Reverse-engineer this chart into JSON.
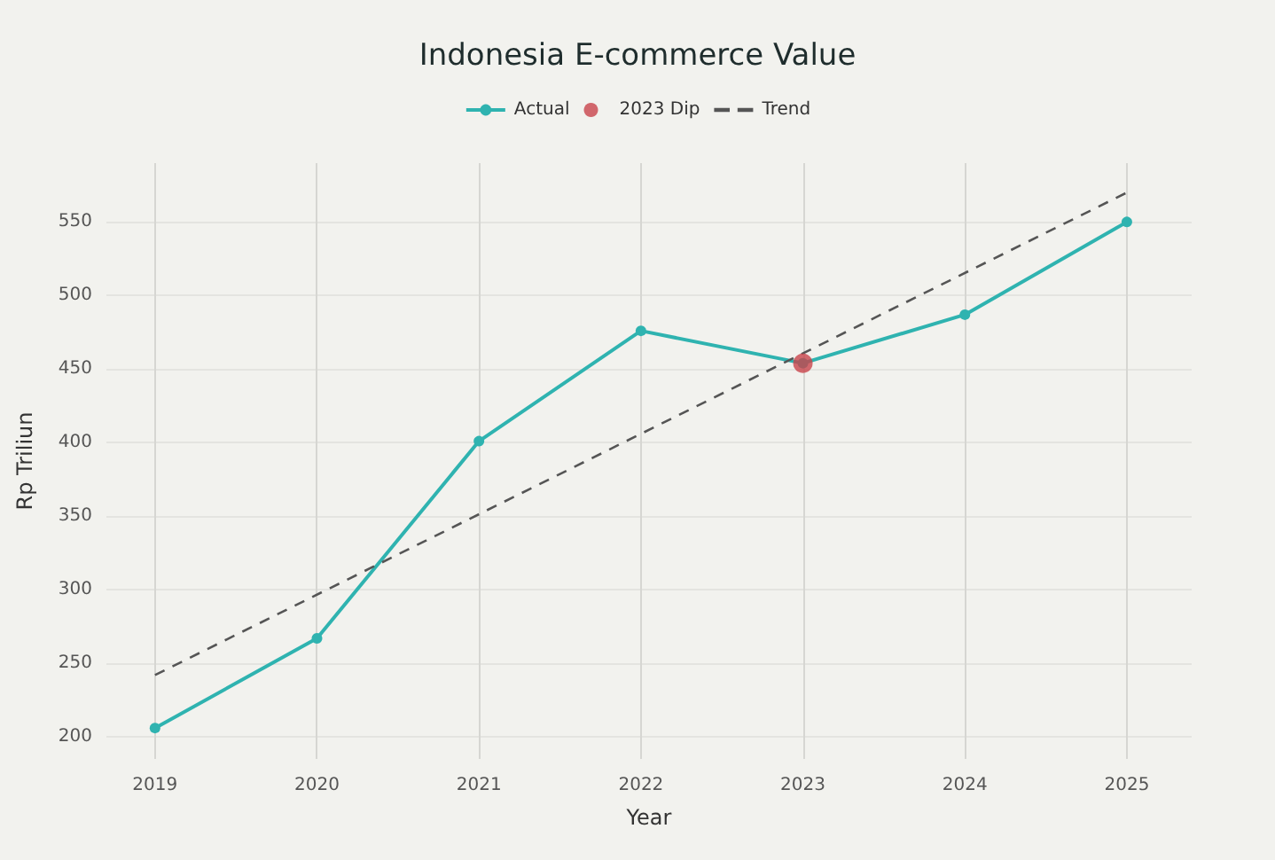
{
  "chart_data": {
    "type": "line",
    "title": "Indonesia E-commerce Value",
    "xlabel": "Year",
    "ylabel": "Rp Triliun",
    "x": [
      2019,
      2020,
      2021,
      2022,
      2023,
      2024,
      2025
    ],
    "series": [
      {
        "name": "Actual",
        "color": "#2fb3b0",
        "values": [
          206,
          267,
          401,
          476,
          454,
          487,
          550
        ],
        "marker": "circle",
        "line_style": "solid"
      },
      {
        "name": "2023 Dip",
        "type": "scatter",
        "color": "#c8434b",
        "x": [
          2023
        ],
        "values": [
          454
        ],
        "marker": "circle"
      },
      {
        "name": "Trend",
        "color": "#555555",
        "x": [
          2019,
          2025
        ],
        "values": [
          242,
          570
        ],
        "marker": "none",
        "line_style": "dashed"
      }
    ],
    "xlim": [
      2018.7,
      2025.4
    ],
    "xticks": [
      2019,
      2020,
      2021,
      2022,
      2023,
      2024,
      2025
    ],
    "ylim": [
      185,
      590
    ],
    "yticks": [
      200,
      250,
      300,
      350,
      400,
      450,
      500,
      550
    ],
    "grid": true,
    "legend": "top"
  }
}
